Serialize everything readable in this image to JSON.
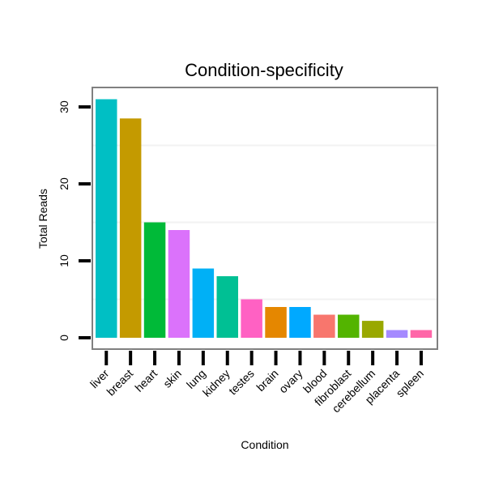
{
  "chart_data": {
    "type": "bar",
    "title": "Condition-specificity",
    "xlabel": "Condition",
    "ylabel": "Total Reads",
    "ylim": [
      0,
      32
    ],
    "yticks": [
      0,
      10,
      20,
      30
    ],
    "grid": true,
    "legend": "none",
    "categories": [
      "liver",
      "breast",
      "heart",
      "skin",
      "lung",
      "kidney",
      "testes",
      "brain",
      "ovary",
      "blood",
      "fibroblast",
      "cerebellum",
      "placenta",
      "spleen"
    ],
    "values": [
      31,
      28.5,
      15,
      14,
      9,
      8,
      5,
      4,
      4,
      3,
      3,
      2.2,
      1,
      1
    ],
    "colors": [
      "#00BFC4",
      "#C49A00",
      "#00BA38",
      "#DB72FB",
      "#00B0F6",
      "#00C094",
      "#FF61C3",
      "#E58700",
      "#00A9FF",
      "#F8766D",
      "#53B400",
      "#99A800",
      "#A58AFF",
      "#FF66A8"
    ]
  }
}
